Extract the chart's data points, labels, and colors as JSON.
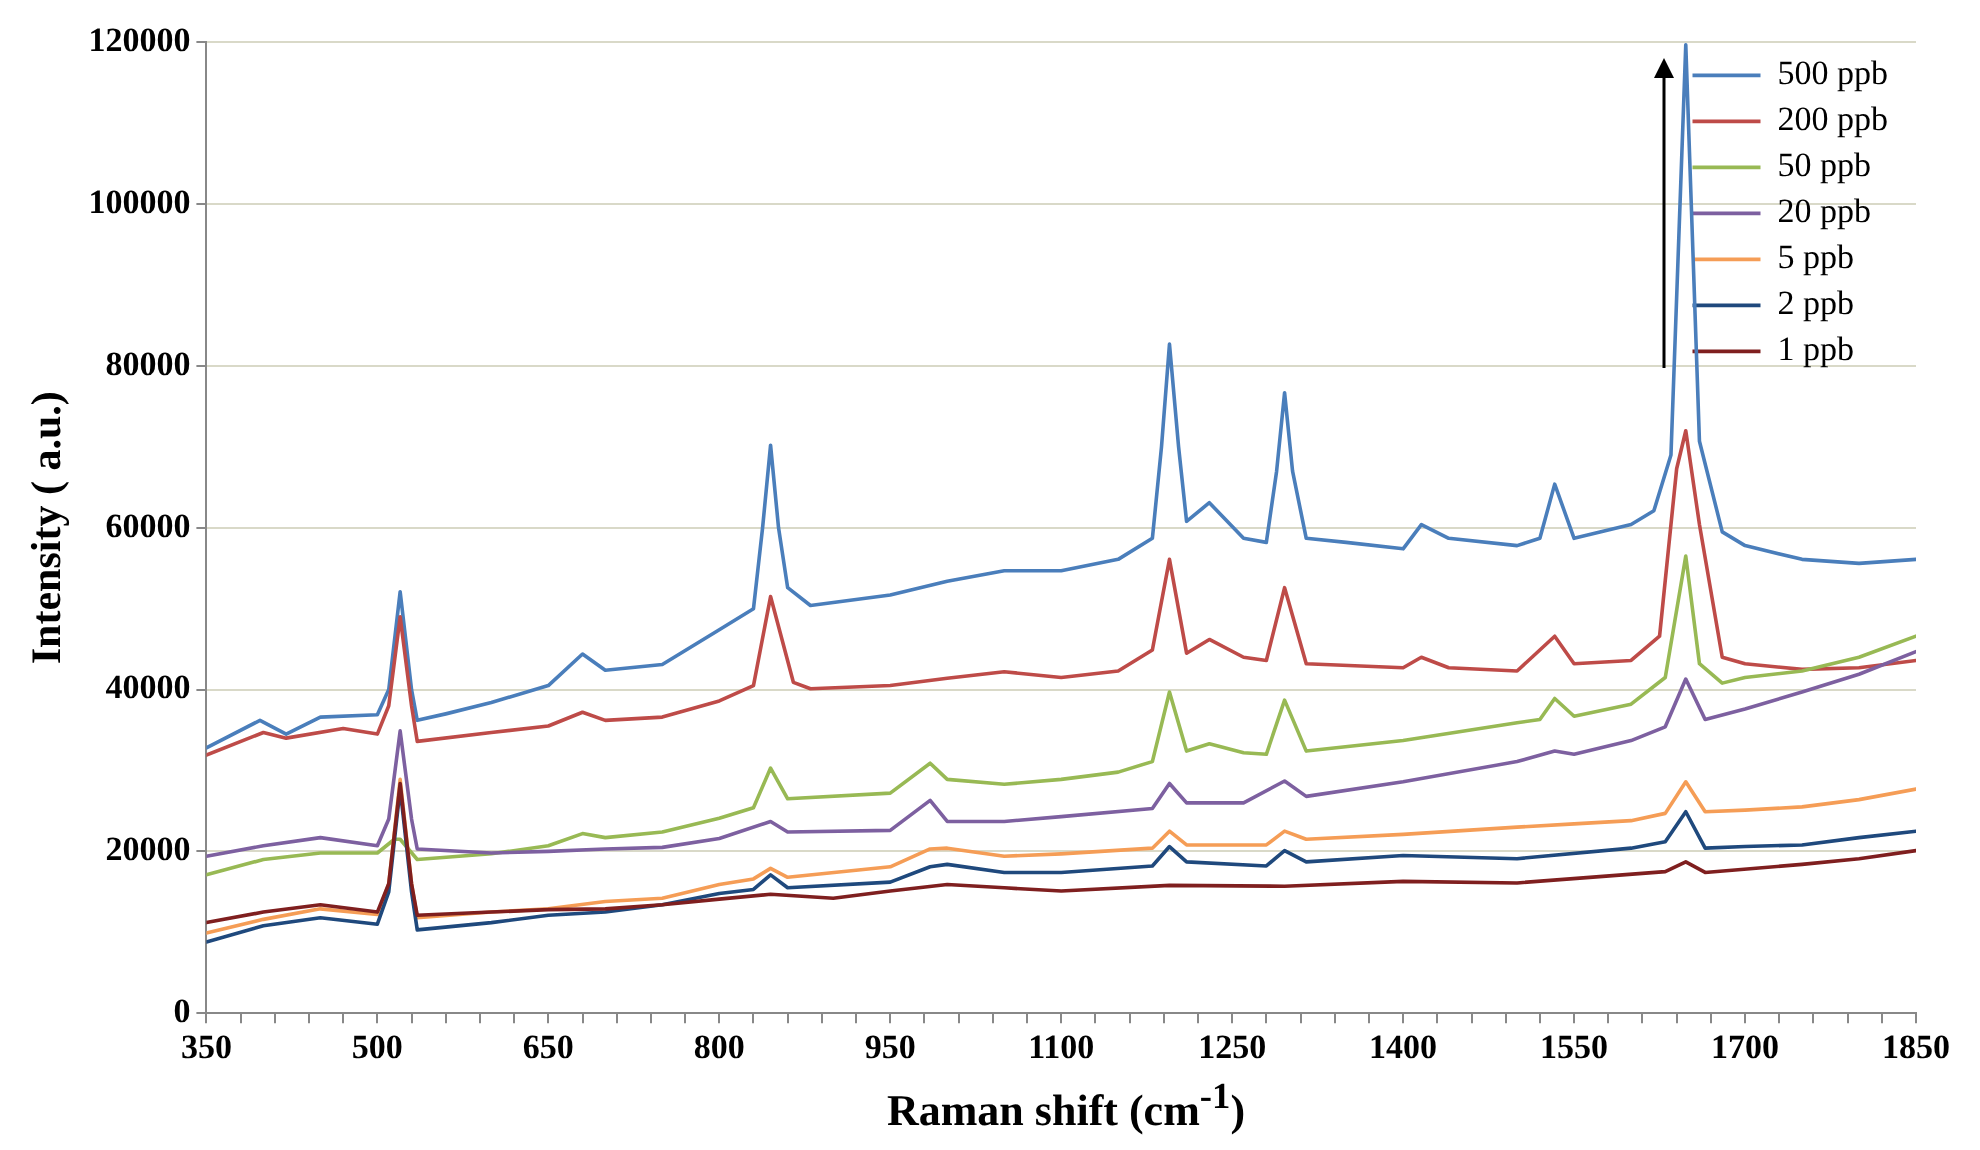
{
  "chart_data": {
    "type": "line",
    "xlabel": "Raman shift (cm$^{-1}$)",
    "ylabel": "Intensity ( a.u.)",
    "xlim": [
      350,
      1850
    ],
    "ylim": [
      0,
      120000
    ],
    "yticks": [
      0,
      20000,
      40000,
      60000,
      80000,
      100000,
      120000
    ],
    "xticks": [
      350,
      {
        "value": 380,
        "label": null
      },
      {
        "value": 410,
        "label": null
      },
      {
        "value": 440,
        "label": null
      },
      {
        "value": 470,
        "label": null
      },
      500,
      {
        "value": 530,
        "label": null
      },
      {
        "value": 560,
        "label": null
      },
      {
        "value": 590,
        "label": null
      },
      {
        "value": 620,
        "label": null
      },
      650,
      {
        "value": 680,
        "label": null
      },
      {
        "value": 710,
        "label": null
      },
      {
        "value": 740,
        "label": null
      },
      {
        "value": 770,
        "label": null
      },
      800,
      {
        "value": 830,
        "label": null
      },
      {
        "value": 860,
        "label": null
      },
      {
        "value": 890,
        "label": null
      },
      {
        "value": 920,
        "label": null
      },
      950,
      {
        "value": 980,
        "label": null
      },
      {
        "value": 1010,
        "label": null
      },
      {
        "value": 1040,
        "label": null
      },
      {
        "value": 1070,
        "label": null
      },
      1100,
      {
        "value": 1130,
        "label": null
      },
      {
        "value": 1160,
        "label": null
      },
      {
        "value": 1190,
        "label": null
      },
      {
        "value": 1220,
        "label": null
      },
      1250,
      {
        "value": 1280,
        "label": null
      },
      {
        "value": 1310,
        "label": null
      },
      {
        "value": 1340,
        "label": null
      },
      {
        "value": 1370,
        "label": null
      },
      1400,
      {
        "value": 1430,
        "label": null
      },
      {
        "value": 1460,
        "label": null
      },
      {
        "value": 1490,
        "label": null
      },
      {
        "value": 1520,
        "label": null
      },
      1550,
      {
        "value": 1580,
        "label": null
      },
      {
        "value": 1610,
        "label": null
      },
      {
        "value": 1640,
        "label": null
      },
      {
        "value": 1670,
        "label": null
      },
      1700,
      {
        "value": 1730,
        "label": null
      },
      {
        "value": 1760,
        "label": null
      },
      {
        "value": 1790,
        "label": null
      },
      {
        "value": 1820,
        "label": null
      },
      1850
    ],
    "grid": "y",
    "legend": "top right",
    "marker": "none",
    "line_style": "solid",
    "series": [
      {
        "name": "500 ppb",
        "color": "#4a7ebb",
        "x": [
          350,
          397,
          420,
          450,
          500,
          510,
          520,
          530,
          535,
          560,
          600,
          650,
          680,
          700,
          750,
          800,
          830,
          838,
          845,
          852,
          860,
          880,
          950,
          1000,
          1050,
          1100,
          1150,
          1180,
          1188,
          1195,
          1203,
          1210,
          1230,
          1260,
          1280,
          1289,
          1296,
          1303,
          1315,
          1350,
          1400,
          1416,
          1440,
          1500,
          1520,
          1533,
          1550,
          1600,
          1620,
          1635,
          1648,
          1660,
          1680,
          1700,
          1750,
          1800,
          1850
        ],
        "values": [
          32800,
          36200,
          34500,
          36600,
          36900,
          40000,
          52100,
          40000,
          36200,
          37000,
          38400,
          40500,
          44400,
          42400,
          43100,
          47400,
          50000,
          60000,
          70200,
          60000,
          52600,
          50400,
          51700,
          53400,
          54700,
          54700,
          56100,
          58700,
          70000,
          82700,
          70000,
          60800,
          63100,
          58700,
          58200,
          67000,
          76700,
          67000,
          58700,
          58200,
          57400,
          60400,
          58700,
          57800,
          58700,
          65400,
          58700,
          60400,
          62100,
          69000,
          119700,
          70700,
          59500,
          57800,
          56100,
          55600,
          56100
        ]
      },
      {
        "name": "200 ppb",
        "color": "#be4b48",
        "x": [
          350,
          400,
          420,
          470,
          500,
          510,
          520,
          530,
          535,
          600,
          650,
          680,
          700,
          750,
          800,
          830,
          845,
          865,
          880,
          950,
          1000,
          1050,
          1100,
          1150,
          1180,
          1195,
          1210,
          1230,
          1260,
          1280,
          1296,
          1315,
          1400,
          1416,
          1440,
          1500,
          1533,
          1550,
          1600,
          1625,
          1640,
          1648,
          1660,
          1680,
          1700,
          1750,
          1800,
          1850
        ],
        "values": [
          31900,
          34700,
          34000,
          35200,
          34500,
          38000,
          49000,
          38000,
          33600,
          34700,
          35500,
          37200,
          36200,
          36600,
          38600,
          40500,
          51500,
          40900,
          40100,
          40500,
          41400,
          42200,
          41500,
          42300,
          44900,
          56100,
          44500,
          46200,
          44000,
          43600,
          52600,
          43200,
          42700,
          44000,
          42700,
          42300,
          46600,
          43200,
          43600,
          46600,
          67300,
          72000,
          60400,
          44000,
          43200,
          42500,
          42700,
          43600
        ]
      },
      {
        "name": "50 ppb",
        "color": "#98b954",
        "x": [
          350,
          400,
          450,
          500,
          515,
          520,
          535,
          600,
          650,
          680,
          700,
          750,
          800,
          830,
          845,
          860,
          950,
          985,
          1000,
          1050,
          1100,
          1150,
          1180,
          1195,
          1210,
          1230,
          1260,
          1280,
          1296,
          1315,
          1400,
          1500,
          1520,
          1533,
          1550,
          1600,
          1630,
          1648,
          1660,
          1680,
          1700,
          1750,
          1800,
          1850
        ],
        "values": [
          17100,
          19000,
          19800,
          19800,
          21500,
          21500,
          19000,
          19700,
          20700,
          22200,
          21700,
          22400,
          24100,
          25400,
          30300,
          26500,
          27200,
          30900,
          28900,
          28300,
          28900,
          29800,
          31100,
          39700,
          32400,
          33300,
          32200,
          32000,
          38700,
          32400,
          33700,
          35900,
          36300,
          38900,
          36700,
          38200,
          41500,
          56500,
          43200,
          40800,
          41500,
          42300,
          44000,
          46600
        ]
      },
      {
        "name": "20 ppb",
        "color": "#7d60a0",
        "x": [
          350,
          400,
          450,
          500,
          510,
          520,
          530,
          535,
          600,
          650,
          700,
          750,
          800,
          845,
          860,
          950,
          985,
          1000,
          1050,
          1100,
          1180,
          1195,
          1210,
          1260,
          1296,
          1315,
          1400,
          1500,
          1533,
          1550,
          1600,
          1630,
          1648,
          1665,
          1700,
          1750,
          1800,
          1850
        ],
        "values": [
          19400,
          20700,
          21700,
          20700,
          24000,
          34900,
          24000,
          20300,
          19800,
          20000,
          20300,
          20500,
          21600,
          23700,
          22400,
          22600,
          26300,
          23700,
          23700,
          24300,
          25300,
          28400,
          26000,
          26000,
          28700,
          26800,
          28600,
          31100,
          32400,
          32000,
          33700,
          35400,
          41300,
          36300,
          37600,
          39700,
          41900,
          44700
        ]
      },
      {
        "name": "5 ppb",
        "color": "#f59d56",
        "x": [
          350,
          400,
          450,
          500,
          510,
          520,
          530,
          535,
          600,
          650,
          700,
          750,
          800,
          830,
          845,
          860,
          950,
          985,
          1000,
          1050,
          1100,
          1180,
          1195,
          1210,
          1280,
          1296,
          1315,
          1400,
          1500,
          1550,
          1600,
          1630,
          1648,
          1665,
          1700,
          1750,
          1800,
          1850
        ],
        "values": [
          9900,
          11600,
          12900,
          12200,
          16000,
          28900,
          16000,
          11800,
          12500,
          12900,
          13800,
          14200,
          15900,
          16600,
          17900,
          16800,
          18100,
          20300,
          20400,
          19400,
          19700,
          20400,
          22500,
          20800,
          20800,
          22500,
          21500,
          22100,
          23000,
          23400,
          23800,
          24700,
          28600,
          24900,
          25100,
          25500,
          26400,
          27700
        ]
      },
      {
        "name": "2 ppb",
        "color": "#1f497d",
        "x": [
          350,
          400,
          450,
          500,
          510,
          520,
          530,
          535,
          600,
          650,
          700,
          750,
          800,
          830,
          845,
          860,
          950,
          985,
          1000,
          1050,
          1100,
          1180,
          1195,
          1210,
          1280,
          1296,
          1315,
          1400,
          1500,
          1600,
          1630,
          1648,
          1665,
          1700,
          1750,
          1800,
          1850
        ],
        "values": [
          8800,
          10800,
          11800,
          11000,
          15000,
          27800,
          15000,
          10300,
          11200,
          12100,
          12500,
          13400,
          14800,
          15300,
          17100,
          15500,
          16200,
          18100,
          18400,
          17400,
          17400,
          18200,
          20600,
          18700,
          18200,
          20100,
          18700,
          19500,
          19100,
          20400,
          21200,
          24900,
          20400,
          20600,
          20800,
          21700,
          22500
        ]
      },
      {
        "name": "1 ppb",
        "color": "#7f1f1f",
        "x": [
          350,
          400,
          450,
          500,
          510,
          520,
          530,
          535,
          600,
          650,
          700,
          750,
          800,
          845,
          900,
          950,
          1000,
          1050,
          1100,
          1195,
          1296,
          1400,
          1500,
          1630,
          1648,
          1665,
          1750,
          1800,
          1850
        ],
        "values": [
          11200,
          12500,
          13400,
          12500,
          16000,
          28400,
          16000,
          12100,
          12500,
          12800,
          12900,
          13400,
          14100,
          14700,
          14200,
          15100,
          15900,
          15500,
          15100,
          15800,
          15700,
          16300,
          16100,
          17500,
          18700,
          17400,
          18400,
          19100,
          20100
        ]
      }
    ]
  }
}
